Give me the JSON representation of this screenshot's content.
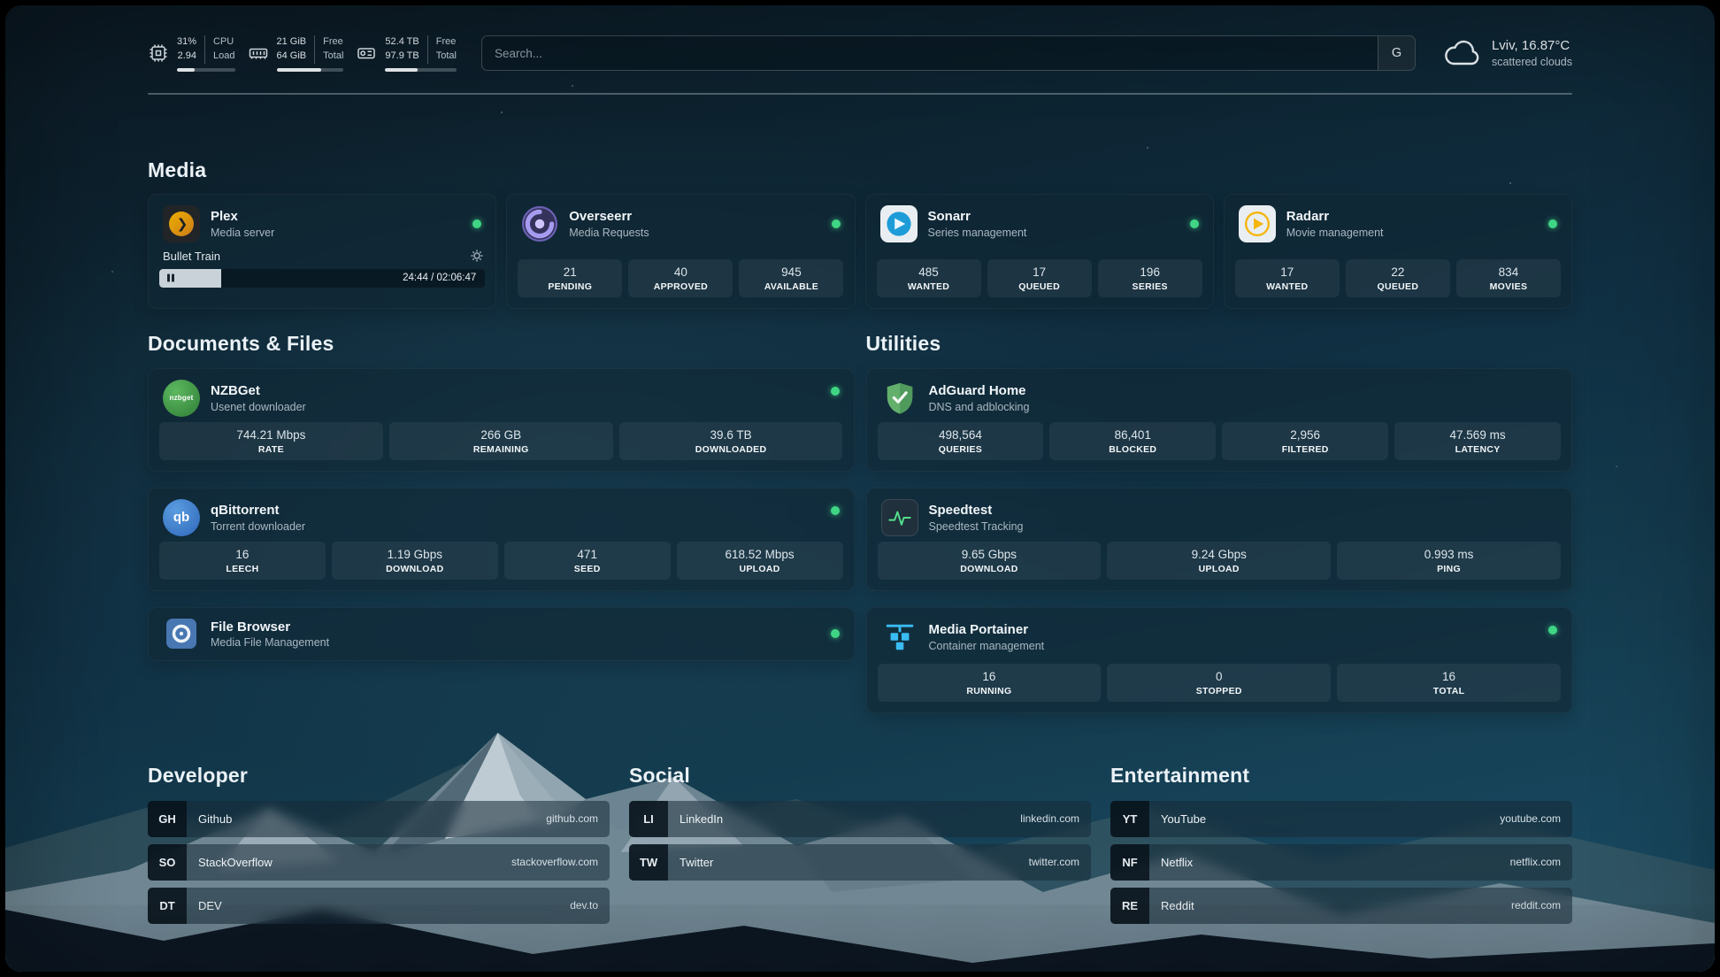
{
  "header": {
    "cpu": {
      "value_top": "31%",
      "value_bottom": "2.94",
      "label_top": "CPU",
      "label_bottom": "Load",
      "bar_percent": 31
    },
    "ram": {
      "value_top": "21 GiB",
      "value_bottom": "64 GiB",
      "label_top": "Free",
      "label_bottom": "Total",
      "bar_percent": 67
    },
    "disk": {
      "value_top": "52.4 TB",
      "value_bottom": "97.9 TB",
      "label_top": "Free",
      "label_bottom": "Total",
      "bar_percent": 46
    },
    "search": {
      "placeholder": "Search...",
      "button": "G"
    },
    "weather": {
      "location": "Lviv, 16.87°C",
      "condition": "scattered clouds"
    }
  },
  "media": {
    "title": "Media",
    "plex": {
      "name": "Plex",
      "subtitle": "Media server",
      "now_playing": "Bullet Train",
      "time": "24:44 / 02:06:47",
      "progress_percent": 19
    },
    "overseerr": {
      "name": "Overseerr",
      "subtitle": "Media Requests",
      "stats": [
        {
          "value": "21",
          "label": "PENDING"
        },
        {
          "value": "40",
          "label": "APPROVED"
        },
        {
          "value": "945",
          "label": "AVAILABLE"
        }
      ]
    },
    "sonarr": {
      "name": "Sonarr",
      "subtitle": "Series management",
      "stats": [
        {
          "value": "485",
          "label": "WANTED"
        },
        {
          "value": "17",
          "label": "QUEUED"
        },
        {
          "value": "196",
          "label": "SERIES"
        }
      ]
    },
    "radarr": {
      "name": "Radarr",
      "subtitle": "Movie management",
      "stats": [
        {
          "value": "17",
          "label": "WANTED"
        },
        {
          "value": "22",
          "label": "QUEUED"
        },
        {
          "value": "834",
          "label": "MOVIES"
        }
      ]
    }
  },
  "documents": {
    "title": "Documents & Files",
    "nzbget": {
      "name": "NZBGet",
      "subtitle": "Usenet downloader",
      "stats": [
        {
          "value": "744.21 Mbps",
          "label": "RATE"
        },
        {
          "value": "266 GB",
          "label": "REMAINING"
        },
        {
          "value": "39.6 TB",
          "label": "DOWNLOADED"
        }
      ]
    },
    "qbittorrent": {
      "name": "qBittorrent",
      "subtitle": "Torrent downloader",
      "stats": [
        {
          "value": "16",
          "label": "LEECH"
        },
        {
          "value": "1.19 Gbps",
          "label": "DOWNLOAD"
        },
        {
          "value": "471",
          "label": "SEED"
        },
        {
          "value": "618.52 Mbps",
          "label": "UPLOAD"
        }
      ]
    },
    "filebrowser": {
      "name": "File Browser",
      "subtitle": "Media File Management"
    }
  },
  "utilities": {
    "title": "Utilities",
    "adguard": {
      "name": "AdGuard Home",
      "subtitle": "DNS and adblocking",
      "stats": [
        {
          "value": "498,564",
          "label": "QUERIES"
        },
        {
          "value": "86,401",
          "label": "BLOCKED"
        },
        {
          "value": "2,956",
          "label": "FILTERED"
        },
        {
          "value": "47.569 ms",
          "label": "LATENCY"
        }
      ]
    },
    "speedtest": {
      "name": "Speedtest",
      "subtitle": "Speedtest Tracking",
      "stats": [
        {
          "value": "9.65 Gbps",
          "label": "DOWNLOAD"
        },
        {
          "value": "9.24 Gbps",
          "label": "UPLOAD"
        },
        {
          "value": "0.993 ms",
          "label": "PING"
        }
      ]
    },
    "portainer": {
      "name": "Media Portainer",
      "subtitle": "Container management",
      "stats": [
        {
          "value": "16",
          "label": "RUNNING"
        },
        {
          "value": "0",
          "label": "STOPPED"
        },
        {
          "value": "16",
          "label": "TOTAL"
        }
      ]
    }
  },
  "bookmarks": {
    "developer": {
      "title": "Developer",
      "items": [
        {
          "abbr": "GH",
          "label": "Github",
          "url": "github.com"
        },
        {
          "abbr": "SO",
          "label": "StackOverflow",
          "url": "stackoverflow.com"
        },
        {
          "abbr": "DT",
          "label": "DEV",
          "url": "dev.to"
        }
      ]
    },
    "social": {
      "title": "Social",
      "items": [
        {
          "abbr": "LI",
          "label": "LinkedIn",
          "url": "linkedin.com"
        },
        {
          "abbr": "TW",
          "label": "Twitter",
          "url": "twitter.com"
        }
      ]
    },
    "entertainment": {
      "title": "Entertainment",
      "items": [
        {
          "abbr": "YT",
          "label": "YouTube",
          "url": "youtube.com"
        },
        {
          "abbr": "NF",
          "label": "Netflix",
          "url": "netflix.com"
        },
        {
          "abbr": "RE",
          "label": "Reddit",
          "url": "reddit.com"
        }
      ]
    }
  },
  "icons": {
    "cpu": "chip-outline",
    "ram": "memory-outline",
    "disk": "drive-outline",
    "weather": "cloud-outline",
    "gear": "gear-outline",
    "pause": "pause-bars",
    "plex_glyph": "❯",
    "qbittorrent_glyph": "qb",
    "nzbget_glyph": "nzbget"
  },
  "colors": {
    "status_online": "#3fd584",
    "plex_accent": "#e5a00d",
    "sonarr_accent": "#1e9cd8",
    "radarr_accent": "#f5b50f",
    "nzbget_accent": "#3f9d46",
    "qbittorrent_accent": "#2f67ba",
    "adguard_accent": "#63b06c",
    "speedtest_accent": "#53e08c",
    "portainer_accent": "#39bcf3"
  }
}
